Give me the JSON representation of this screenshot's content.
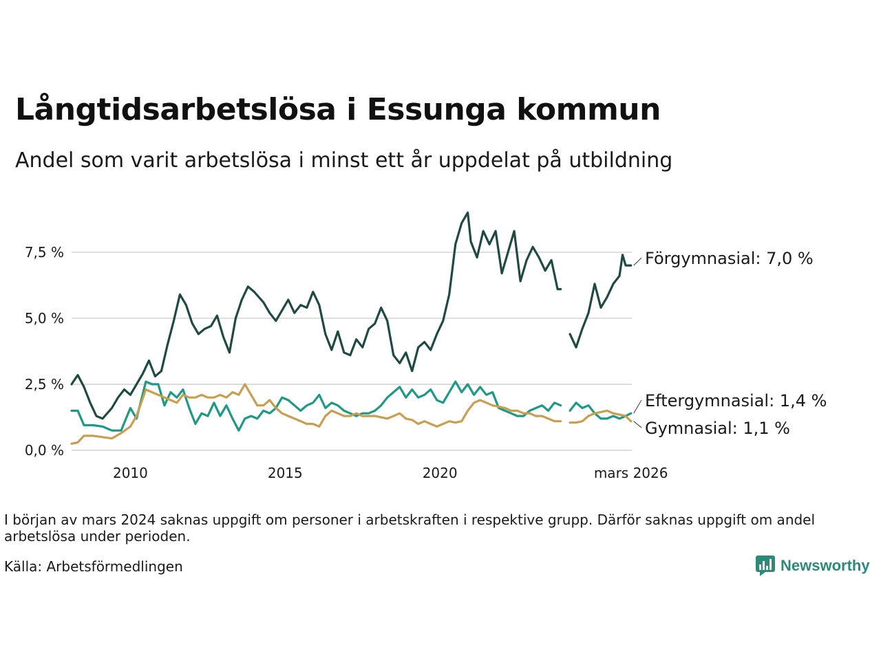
{
  "title": "Långtidsarbetslösa i Essunga kommun",
  "subtitle": "Andel som varit arbetslösa i minst ett år uppdelat på utbildning",
  "note": "I början av mars 2024 saknas uppgift om personer i arbetskraften i respektive grupp. Därför saknas uppgift om andel arbetslösa under perioden.",
  "source": "Källa: Arbetsförmedlingen",
  "brand": {
    "name": "Newsworthy",
    "icon": "bar-chart-logo-icon"
  },
  "colors": {
    "forgymnasial": "#1e4a43",
    "eftergymnasial": "#1d9985",
    "gymnasial": "#c89e4f",
    "grid": "#dddddd"
  },
  "chart_data": {
    "type": "line",
    "title": "Långtidsarbetslösa i Essunga kommun",
    "xlabel": "",
    "ylabel": "",
    "x_range": [
      2008.1,
      2026.2
    ],
    "ylim": [
      0,
      9.5
    ],
    "y_ticks": [
      0,
      2.5,
      5,
      7.5
    ],
    "y_tick_labels": [
      "0,0 %",
      "2,5 %",
      "5,0 %",
      "7,5 %"
    ],
    "x_ticks": [
      2010,
      2015,
      2020,
      2026.17
    ],
    "x_tick_labels": [
      "2010",
      "2015",
      "2020",
      "mars 2026"
    ],
    "grid": true,
    "gap": [
      2023.9,
      2024.2
    ],
    "series": [
      {
        "name": "Förgymnasial",
        "end_label": "Förgymnasial: 7,0 %",
        "color": "#1e4a43",
        "points": [
          [
            2008.1,
            2.5
          ],
          [
            2008.3,
            2.85
          ],
          [
            2008.5,
            2.4
          ],
          [
            2008.7,
            1.8
          ],
          [
            2008.9,
            1.3
          ],
          [
            2009.1,
            1.2
          ],
          [
            2009.4,
            1.6
          ],
          [
            2009.6,
            2.0
          ],
          [
            2009.8,
            2.3
          ],
          [
            2010.0,
            2.1
          ],
          [
            2010.2,
            2.5
          ],
          [
            2010.4,
            2.9
          ],
          [
            2010.6,
            3.4
          ],
          [
            2010.8,
            2.8
          ],
          [
            2011.0,
            3.0
          ],
          [
            2011.2,
            4.0
          ],
          [
            2011.4,
            4.9
          ],
          [
            2011.6,
            5.9
          ],
          [
            2011.8,
            5.5
          ],
          [
            2012.0,
            4.8
          ],
          [
            2012.2,
            4.4
          ],
          [
            2012.4,
            4.6
          ],
          [
            2012.6,
            4.7
          ],
          [
            2012.8,
            5.1
          ],
          [
            2013.0,
            4.3
          ],
          [
            2013.2,
            3.7
          ],
          [
            2013.4,
            5.0
          ],
          [
            2013.6,
            5.7
          ],
          [
            2013.8,
            6.2
          ],
          [
            2014.0,
            6.0
          ],
          [
            2014.3,
            5.6
          ],
          [
            2014.5,
            5.2
          ],
          [
            2014.7,
            4.9
          ],
          [
            2014.9,
            5.3
          ],
          [
            2015.1,
            5.7
          ],
          [
            2015.3,
            5.2
          ],
          [
            2015.5,
            5.5
          ],
          [
            2015.7,
            5.4
          ],
          [
            2015.9,
            6.0
          ],
          [
            2016.1,
            5.5
          ],
          [
            2016.3,
            4.4
          ],
          [
            2016.5,
            3.8
          ],
          [
            2016.7,
            4.5
          ],
          [
            2016.9,
            3.7
          ],
          [
            2017.1,
            3.6
          ],
          [
            2017.3,
            4.2
          ],
          [
            2017.5,
            3.9
          ],
          [
            2017.7,
            4.6
          ],
          [
            2017.9,
            4.8
          ],
          [
            2018.1,
            5.4
          ],
          [
            2018.3,
            4.9
          ],
          [
            2018.5,
            3.6
          ],
          [
            2018.7,
            3.3
          ],
          [
            2018.9,
            3.7
          ],
          [
            2019.1,
            3.0
          ],
          [
            2019.3,
            3.9
          ],
          [
            2019.5,
            4.1
          ],
          [
            2019.7,
            3.8
          ],
          [
            2019.9,
            4.4
          ],
          [
            2020.1,
            4.9
          ],
          [
            2020.3,
            5.9
          ],
          [
            2020.5,
            7.8
          ],
          [
            2020.7,
            8.6
          ],
          [
            2020.9,
            9.0
          ],
          [
            2021.0,
            7.9
          ],
          [
            2021.2,
            7.3
          ],
          [
            2021.4,
            8.3
          ],
          [
            2021.6,
            7.8
          ],
          [
            2021.8,
            8.3
          ],
          [
            2022.0,
            6.7
          ],
          [
            2022.2,
            7.5
          ],
          [
            2022.4,
            8.3
          ],
          [
            2022.6,
            6.4
          ],
          [
            2022.8,
            7.2
          ],
          [
            2023.0,
            7.7
          ],
          [
            2023.2,
            7.3
          ],
          [
            2023.4,
            6.8
          ],
          [
            2023.6,
            7.2
          ],
          [
            2023.8,
            6.1
          ],
          [
            2023.9,
            6.1
          ],
          [
            2024.2,
            4.4
          ],
          [
            2024.4,
            3.9
          ],
          [
            2024.6,
            4.6
          ],
          [
            2024.8,
            5.2
          ],
          [
            2025.0,
            6.3
          ],
          [
            2025.2,
            5.4
          ],
          [
            2025.4,
            5.8
          ],
          [
            2025.6,
            6.3
          ],
          [
            2025.8,
            6.6
          ],
          [
            2025.9,
            7.4
          ],
          [
            2026.0,
            7.0
          ],
          [
            2026.17,
            7.0
          ]
        ]
      },
      {
        "name": "Eftergymnasial",
        "end_label": "Eftergymnasial: 1,4 %",
        "color": "#1d9985",
        "points": [
          [
            2008.1,
            1.5
          ],
          [
            2008.3,
            1.5
          ],
          [
            2008.5,
            0.95
          ],
          [
            2008.8,
            0.95
          ],
          [
            2009.1,
            0.9
          ],
          [
            2009.4,
            0.75
          ],
          [
            2009.7,
            0.75
          ],
          [
            2010.0,
            1.6
          ],
          [
            2010.2,
            1.2
          ],
          [
            2010.5,
            2.6
          ],
          [
            2010.7,
            2.5
          ],
          [
            2010.9,
            2.5
          ],
          [
            2011.1,
            1.7
          ],
          [
            2011.3,
            2.2
          ],
          [
            2011.5,
            2.0
          ],
          [
            2011.7,
            2.3
          ],
          [
            2011.9,
            1.6
          ],
          [
            2012.1,
            1.0
          ],
          [
            2012.3,
            1.4
          ],
          [
            2012.5,
            1.3
          ],
          [
            2012.7,
            1.8
          ],
          [
            2012.9,
            1.3
          ],
          [
            2013.1,
            1.7
          ],
          [
            2013.3,
            1.2
          ],
          [
            2013.5,
            0.75
          ],
          [
            2013.7,
            1.2
          ],
          [
            2013.9,
            1.3
          ],
          [
            2014.1,
            1.2
          ],
          [
            2014.3,
            1.5
          ],
          [
            2014.5,
            1.4
          ],
          [
            2014.7,
            1.6
          ],
          [
            2014.9,
            2.0
          ],
          [
            2015.1,
            1.9
          ],
          [
            2015.3,
            1.7
          ],
          [
            2015.5,
            1.5
          ],
          [
            2015.7,
            1.7
          ],
          [
            2015.9,
            1.8
          ],
          [
            2016.1,
            2.1
          ],
          [
            2016.3,
            1.6
          ],
          [
            2016.5,
            1.8
          ],
          [
            2016.7,
            1.7
          ],
          [
            2016.9,
            1.5
          ],
          [
            2017.1,
            1.4
          ],
          [
            2017.3,
            1.3
          ],
          [
            2017.5,
            1.4
          ],
          [
            2017.7,
            1.4
          ],
          [
            2017.9,
            1.5
          ],
          [
            2018.1,
            1.7
          ],
          [
            2018.3,
            2.0
          ],
          [
            2018.5,
            2.2
          ],
          [
            2018.7,
            2.4
          ],
          [
            2018.9,
            2.0
          ],
          [
            2019.1,
            2.3
          ],
          [
            2019.3,
            2.0
          ],
          [
            2019.5,
            2.1
          ],
          [
            2019.7,
            2.3
          ],
          [
            2019.9,
            1.9
          ],
          [
            2020.1,
            1.8
          ],
          [
            2020.3,
            2.2
          ],
          [
            2020.5,
            2.6
          ],
          [
            2020.7,
            2.2
          ],
          [
            2020.9,
            2.5
          ],
          [
            2021.1,
            2.1
          ],
          [
            2021.3,
            2.4
          ],
          [
            2021.5,
            2.1
          ],
          [
            2021.7,
            2.2
          ],
          [
            2021.9,
            1.6
          ],
          [
            2022.1,
            1.5
          ],
          [
            2022.3,
            1.4
          ],
          [
            2022.5,
            1.3
          ],
          [
            2022.7,
            1.3
          ],
          [
            2022.9,
            1.5
          ],
          [
            2023.1,
            1.6
          ],
          [
            2023.3,
            1.7
          ],
          [
            2023.5,
            1.5
          ],
          [
            2023.7,
            1.8
          ],
          [
            2023.9,
            1.7
          ],
          [
            2024.2,
            1.5
          ],
          [
            2024.4,
            1.8
          ],
          [
            2024.6,
            1.6
          ],
          [
            2024.8,
            1.7
          ],
          [
            2025.0,
            1.4
          ],
          [
            2025.2,
            1.2
          ],
          [
            2025.4,
            1.2
          ],
          [
            2025.6,
            1.3
          ],
          [
            2025.8,
            1.2
          ],
          [
            2026.0,
            1.3
          ],
          [
            2026.17,
            1.4
          ]
        ]
      },
      {
        "name": "Gymnasial",
        "end_label": "Gymnasial: 1,1 %",
        "color": "#c89e4f",
        "points": [
          [
            2008.1,
            0.25
          ],
          [
            2008.3,
            0.3
          ],
          [
            2008.5,
            0.55
          ],
          [
            2008.8,
            0.55
          ],
          [
            2009.1,
            0.5
          ],
          [
            2009.4,
            0.45
          ],
          [
            2009.7,
            0.65
          ],
          [
            2010.0,
            0.9
          ],
          [
            2010.2,
            1.3
          ],
          [
            2010.5,
            2.3
          ],
          [
            2010.7,
            2.2
          ],
          [
            2010.9,
            2.1
          ],
          [
            2011.1,
            2.0
          ],
          [
            2011.3,
            1.9
          ],
          [
            2011.5,
            1.8
          ],
          [
            2011.7,
            2.1
          ],
          [
            2011.9,
            2.0
          ],
          [
            2012.1,
            2.0
          ],
          [
            2012.3,
            2.1
          ],
          [
            2012.5,
            2.0
          ],
          [
            2012.7,
            2.0
          ],
          [
            2012.9,
            2.1
          ],
          [
            2013.1,
            2.0
          ],
          [
            2013.3,
            2.2
          ],
          [
            2013.5,
            2.1
          ],
          [
            2013.7,
            2.5
          ],
          [
            2013.9,
            2.1
          ],
          [
            2014.1,
            1.7
          ],
          [
            2014.3,
            1.7
          ],
          [
            2014.5,
            1.9
          ],
          [
            2014.7,
            1.6
          ],
          [
            2014.9,
            1.4
          ],
          [
            2015.1,
            1.3
          ],
          [
            2015.3,
            1.2
          ],
          [
            2015.5,
            1.1
          ],
          [
            2015.7,
            1.0
          ],
          [
            2015.9,
            1.0
          ],
          [
            2016.1,
            0.9
          ],
          [
            2016.3,
            1.3
          ],
          [
            2016.5,
            1.5
          ],
          [
            2016.7,
            1.4
          ],
          [
            2016.9,
            1.3
          ],
          [
            2017.1,
            1.3
          ],
          [
            2017.3,
            1.4
          ],
          [
            2017.5,
            1.3
          ],
          [
            2017.7,
            1.3
          ],
          [
            2017.9,
            1.3
          ],
          [
            2018.1,
            1.25
          ],
          [
            2018.3,
            1.2
          ],
          [
            2018.5,
            1.3
          ],
          [
            2018.7,
            1.4
          ],
          [
            2018.9,
            1.2
          ],
          [
            2019.1,
            1.15
          ],
          [
            2019.3,
            1.0
          ],
          [
            2019.5,
            1.1
          ],
          [
            2019.7,
            1.0
          ],
          [
            2019.9,
            0.9
          ],
          [
            2020.1,
            1.0
          ],
          [
            2020.3,
            1.1
          ],
          [
            2020.5,
            1.05
          ],
          [
            2020.7,
            1.1
          ],
          [
            2020.9,
            1.5
          ],
          [
            2021.1,
            1.8
          ],
          [
            2021.3,
            1.9
          ],
          [
            2021.5,
            1.8
          ],
          [
            2021.7,
            1.7
          ],
          [
            2021.9,
            1.65
          ],
          [
            2022.1,
            1.6
          ],
          [
            2022.3,
            1.5
          ],
          [
            2022.5,
            1.5
          ],
          [
            2022.7,
            1.4
          ],
          [
            2022.9,
            1.4
          ],
          [
            2023.1,
            1.3
          ],
          [
            2023.3,
            1.3
          ],
          [
            2023.5,
            1.2
          ],
          [
            2023.7,
            1.1
          ],
          [
            2023.9,
            1.1
          ],
          [
            2024.2,
            1.05
          ],
          [
            2024.4,
            1.05
          ],
          [
            2024.6,
            1.1
          ],
          [
            2024.8,
            1.3
          ],
          [
            2025.0,
            1.4
          ],
          [
            2025.2,
            1.45
          ],
          [
            2025.4,
            1.5
          ],
          [
            2025.6,
            1.4
          ],
          [
            2025.8,
            1.35
          ],
          [
            2026.0,
            1.3
          ],
          [
            2026.17,
            1.1
          ]
        ]
      }
    ]
  }
}
